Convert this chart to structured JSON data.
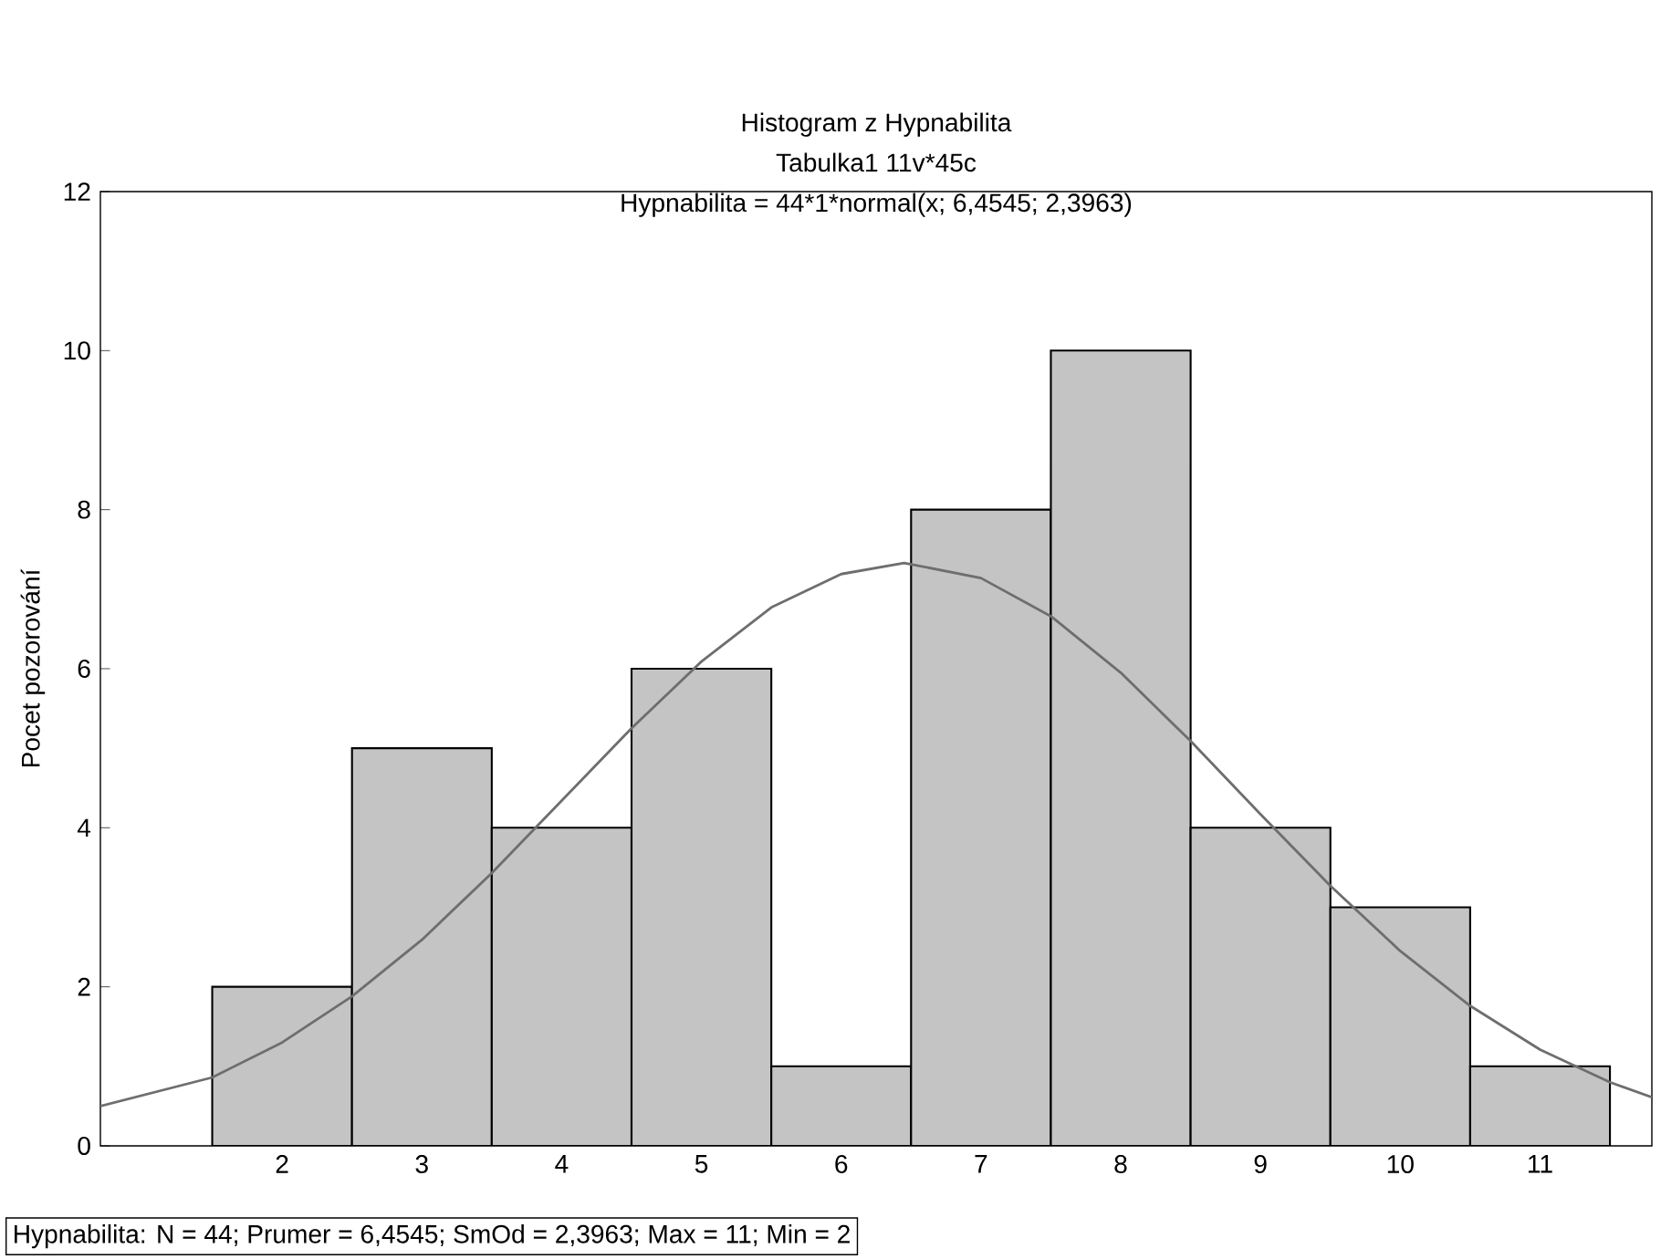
{
  "chart_data": {
    "type": "histogram",
    "title": "Histogram z Hypnabilita",
    "subtitle": "Tabulka1 11v*45c",
    "ylabel": "Pocet pozorování",
    "annotations": [
      "Hypnabilita = 44*1*normal(x; 6,4545; 2,3963)",
      "Hypnabilita:   N = 44; Prumer = 6,4545; SmOd = 2,3963; Max = 11; Min = 2"
    ],
    "bins": [
      1.5,
      2.5,
      3.5,
      4.5,
      5.5,
      6.5,
      7.5,
      8.5,
      9.5,
      10.5,
      11.5
    ],
    "values": [
      2,
      5,
      4,
      6,
      1,
      8,
      10,
      4,
      3,
      1
    ],
    "color": "#c4c4c4",
    "series": [
      {
        "type": "line",
        "color": "#6e6e6e",
        "x": [
          0.7,
          1.5,
          2,
          2.5,
          3,
          3.5,
          4,
          4.5,
          5,
          5.5,
          6,
          6.45,
          7,
          7.5,
          8,
          8.5,
          9,
          9.5,
          10,
          10.5,
          11,
          11.5,
          11.8
        ],
        "values": [
          0.5,
          0.86,
          1.3,
          1.88,
          2.59,
          3.43,
          4.34,
          5.25,
          6.09,
          6.77,
          7.19,
          7.33,
          7.14,
          6.66,
          5.95,
          5.09,
          4.17,
          3.27,
          2.45,
          1.76,
          1.21,
          0.8,
          0.61
        ]
      }
    ],
    "xlim": [
      0.7,
      11.8
    ],
    "ylim": [
      0,
      12
    ],
    "xticks": [
      2,
      3,
      4,
      5,
      6,
      7,
      8,
      9,
      10,
      11
    ],
    "yticks": [
      0,
      2,
      4,
      6,
      8,
      10,
      12
    ]
  }
}
